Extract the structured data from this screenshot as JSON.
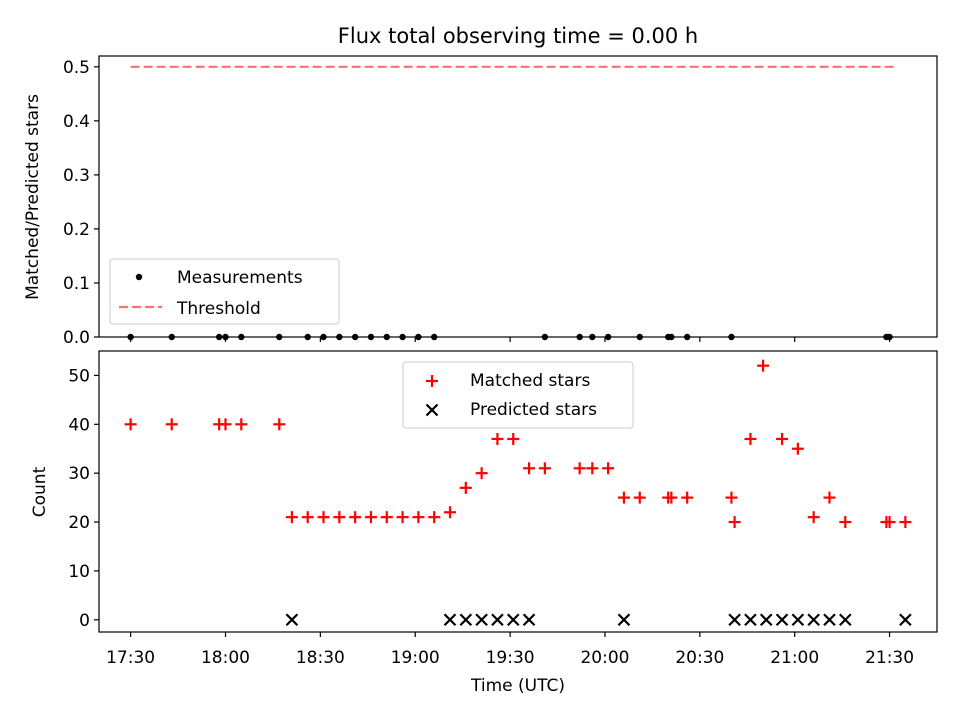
{
  "chart_data": [
    {
      "type": "scatter",
      "title": "Flux total observing time = 0.00 h",
      "xlabel": "",
      "ylabel": "Matched/Predicted stars",
      "xlim": [
        "17:20",
        "21:45"
      ],
      "ylim": [
        0,
        0.52
      ],
      "yticks": [
        "0.0",
        "0.1",
        "0.2",
        "0.3",
        "0.4",
        "0.5"
      ],
      "legend": [
        "Measurements",
        "Threshold"
      ],
      "legend_location": "lower-left",
      "series": [
        {
          "name": "Measurements",
          "marker": "dot",
          "color": "#000000",
          "x": [
            "17:30",
            "17:43",
            "17:58",
            "18:00",
            "18:05",
            "18:17",
            "18:26",
            "18:31",
            "18:36",
            "18:41",
            "18:46",
            "18:51",
            "18:56",
            "19:01",
            "19:06",
            "19:41",
            "19:52",
            "19:56",
            "20:01",
            "20:11",
            "20:20",
            "20:21",
            "20:26",
            "20:40",
            "21:29",
            "21:30"
          ],
          "y": [
            0,
            0,
            0,
            0,
            0,
            0,
            0,
            0,
            0,
            0,
            0,
            0,
            0,
            0,
            0,
            0,
            0,
            0,
            0,
            0,
            0,
            0,
            0,
            0,
            0,
            0
          ]
        },
        {
          "name": "Threshold",
          "style": "dashed",
          "color": "#ff6f6f",
          "x": [
            "17:30",
            "21:32"
          ],
          "y": [
            0.5,
            0.5
          ]
        }
      ]
    },
    {
      "type": "scatter",
      "title": "",
      "xlabel": "Time (UTC)",
      "ylabel": "Count",
      "xlim": [
        "17:20",
        "21:45"
      ],
      "ylim": [
        -2.5,
        55
      ],
      "xticks": [
        "17:30",
        "18:00",
        "18:30",
        "19:00",
        "19:30",
        "20:00",
        "20:30",
        "21:00",
        "21:30"
      ],
      "yticks": [
        "0",
        "10",
        "20",
        "30",
        "40",
        "50"
      ],
      "legend": [
        "Matched stars",
        "Predicted stars"
      ],
      "legend_location": "upper-center",
      "series": [
        {
          "name": "Matched stars",
          "marker": "plus",
          "color": "#ff0000",
          "x": [
            "17:30",
            "17:43",
            "17:58",
            "18:00",
            "18:05",
            "18:17",
            "18:21",
            "18:26",
            "18:31",
            "18:36",
            "18:41",
            "18:46",
            "18:51",
            "18:56",
            "19:01",
            "19:06",
            "19:11",
            "19:16",
            "19:21",
            "19:26",
            "19:31",
            "19:36",
            "19:41",
            "19:52",
            "19:56",
            "20:01",
            "20:06",
            "20:11",
            "20:20",
            "20:21",
            "20:26",
            "20:40",
            "20:41",
            "20:46",
            "20:50",
            "20:56",
            "21:01",
            "21:06",
            "21:11",
            "21:16",
            "21:29",
            "21:30",
            "21:35"
          ],
          "y": [
            40,
            40,
            40,
            40,
            40,
            40,
            21,
            21,
            21,
            21,
            21,
            21,
            21,
            21,
            21,
            21,
            22,
            27,
            30,
            37,
            37,
            31,
            31,
            31,
            31,
            31,
            25,
            25,
            25,
            25,
            25,
            25,
            20,
            37,
            52,
            37,
            35,
            21,
            25,
            20,
            20,
            20,
            20
          ]
        },
        {
          "name": "Predicted stars",
          "marker": "x",
          "color": "#000000",
          "x": [
            "18:21",
            "19:11",
            "19:16",
            "19:21",
            "19:26",
            "19:31",
            "19:36",
            "20:06",
            "20:41",
            "20:46",
            "20:51",
            "20:56",
            "21:01",
            "21:06",
            "21:11",
            "21:16",
            "21:35"
          ],
          "y": [
            0,
            0,
            0,
            0,
            0,
            0,
            0,
            0,
            0,
            0,
            0,
            0,
            0,
            0,
            0,
            0,
            0
          ]
        }
      ]
    }
  ]
}
